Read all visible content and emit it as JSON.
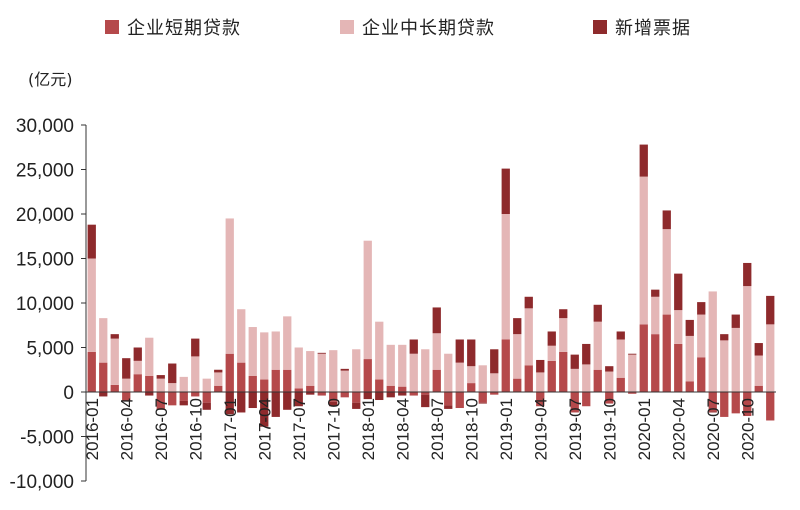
{
  "unit_label": "(亿元)",
  "colors": {
    "short_term": "#b5494b",
    "mid_long_term": "#e4b6b6",
    "bills": "#8e2a2c"
  },
  "chart_data": {
    "type": "bar",
    "stacked": true,
    "title": "",
    "xlabel": "",
    "ylabel": "(亿元)",
    "ylim": [
      -10000,
      30000
    ],
    "yticks": [
      -10000,
      -5000,
      0,
      5000,
      10000,
      15000,
      20000,
      25000,
      30000
    ],
    "ytick_labels": [
      "-10,000",
      "-5,000",
      "0",
      "5,000",
      "10,000",
      "15,000",
      "20,000",
      "25,000",
      "30,000"
    ],
    "grid": false,
    "legend_position": "top",
    "categories": [
      "2016-01",
      "2016-02",
      "2016-03",
      "2016-04",
      "2016-05",
      "2016-06",
      "2016-07",
      "2016-08",
      "2016-09",
      "2016-10",
      "2016-11",
      "2016-12",
      "2017-01",
      "2017-02",
      "2017-03",
      "2017-04",
      "2017-05",
      "2017-06",
      "2017-07",
      "2017-08",
      "2017-09",
      "2017-10",
      "2017-11",
      "2017-12",
      "2018-01",
      "2018-02",
      "2018-03",
      "2018-04",
      "2018-05",
      "2018-06",
      "2018-07",
      "2018-08",
      "2018-09",
      "2018-10",
      "2018-11",
      "2018-12",
      "2019-01",
      "2019-02",
      "2019-03",
      "2019-04",
      "2019-05",
      "2019-06",
      "2019-07",
      "2019-08",
      "2019-09",
      "2019-10",
      "2019-11",
      "2019-12",
      "2020-01",
      "2020-02",
      "2020-03",
      "2020-04",
      "2020-05",
      "2020-06",
      "2020-07",
      "2020-08",
      "2020-09",
      "2020-10",
      "2020-11",
      "2020-12"
    ],
    "x_tick_labels": [
      "2016-01",
      "2016-04",
      "2016-07",
      "2016-10",
      "2017-01",
      "2017-04",
      "2017-07",
      "2017-10",
      "2018-01",
      "2018-04",
      "2018-07",
      "2018-10",
      "2019-01",
      "2019-04",
      "2019-07",
      "2019-10",
      "2020-01",
      "2020-04",
      "2020-07",
      "2020-10"
    ],
    "series": [
      {
        "name": "企业短期贷款",
        "key": "short_term",
        "values": [
          4500,
          3300,
          800,
          -1000,
          2000,
          1800,
          -2000,
          -1500,
          -1000,
          -500,
          -1200,
          700,
          4300,
          3300,
          1800,
          1400,
          2500,
          2500,
          400,
          700,
          -400,
          -1100,
          -600,
          -1200,
          3700,
          1400,
          700,
          600,
          -400,
          -300,
          2500,
          -1500,
          -1800,
          1000,
          -1200,
          -300,
          5900,
          1500,
          3000,
          -1600,
          3500,
          4500,
          -2300,
          -1600,
          2500,
          -1300,
          1600,
          -200,
          7600,
          6500,
          8700,
          5400,
          1200,
          3900,
          -2200,
          -2800,
          -2400,
          -2700,
          700,
          -3200
        ]
      },
      {
        "name": "企业中长期贷款",
        "key": "mid_long_term",
        "values": [
          10500,
          5000,
          5200,
          1500,
          1500,
          4300,
          1500,
          1000,
          1700,
          4000,
          1500,
          1500,
          15200,
          6000,
          5500,
          5300,
          4300,
          6000,
          4600,
          3900,
          4300,
          4700,
          2400,
          4800,
          13300,
          6500,
          4600,
          4700,
          4300,
          4800,
          4100,
          4300,
          3300,
          1900,
          3000,
          2100,
          14100,
          5000,
          6400,
          2200,
          1700,
          3800,
          2600,
          3100,
          5400,
          2300,
          4300,
          4200,
          16600,
          4200,
          9600,
          3800,
          5100,
          4800,
          11300,
          5800,
          7200,
          11900,
          3400,
          7600
        ]
      },
      {
        "name": "新增票据",
        "key": "bills",
        "values": [
          3800,
          -500,
          500,
          2300,
          1500,
          -400,
          400,
          2200,
          -500,
          2000,
          -800,
          300,
          -2500,
          -2300,
          -1800,
          -3900,
          -2800,
          -2000,
          -1600,
          -300,
          100,
          -500,
          200,
          -700,
          -800,
          -900,
          -600,
          -400,
          1600,
          -1400,
          2900,
          -400,
          2600,
          3000,
          -100,
          2700,
          5100,
          1800,
          1300,
          1400,
          1600,
          1000,
          1600,
          2300,
          1900,
          600,
          900,
          100,
          3600,
          800,
          2100,
          4100,
          1800,
          1400,
          -100,
          700,
          1500,
          2600,
          1400,
          3200
        ]
      }
    ]
  }
}
